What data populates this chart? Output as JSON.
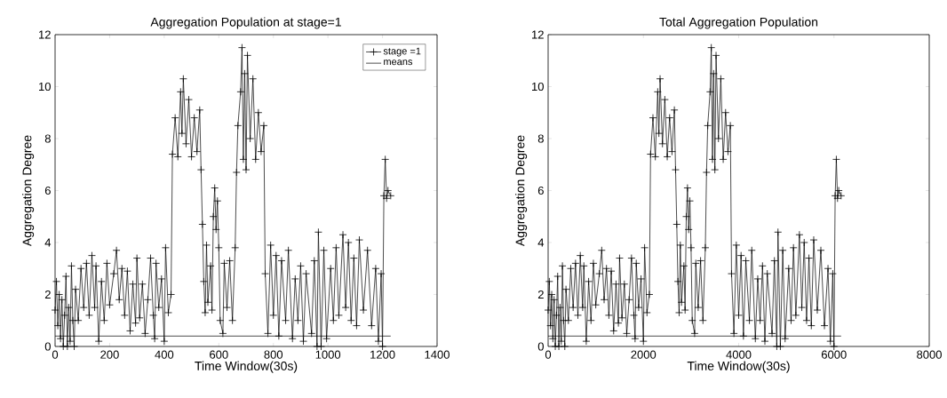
{
  "chart_data": [
    {
      "type": "line",
      "title": "Aggregation Population at stage=1",
      "xlabel": "Time Window(30s)",
      "ylabel": "Aggregation Degree",
      "xlim": [
        0,
        1400
      ],
      "xticks": [
        0,
        200,
        400,
        600,
        800,
        1000,
        1200,
        1400
      ],
      "ylim": [
        0,
        12
      ],
      "yticks": [
        0,
        2,
        4,
        6,
        8,
        10,
        12
      ],
      "legend": "top right",
      "series": [
        {
          "name": "stage =1",
          "color": "#000000",
          "marker": "cross",
          "x": [
            0,
            5,
            10,
            15,
            20,
            25,
            30,
            35,
            40,
            45,
            50,
            55,
            60,
            65,
            70,
            75,
            85,
            95,
            105,
            115,
            125,
            135,
            145,
            150,
            160,
            170,
            180,
            190,
            200,
            215,
            225,
            235,
            245,
            255,
            265,
            275,
            285,
            295,
            300,
            310,
            320,
            330,
            340,
            350,
            360,
            365,
            370,
            380,
            390,
            400,
            405,
            415,
            425,
            430,
            440,
            450,
            460,
            465,
            470,
            480,
            490,
            500,
            510,
            520,
            530,
            535,
            540,
            545,
            550,
            555,
            560,
            570,
            575,
            580,
            585,
            590,
            595,
            600,
            605,
            615,
            620,
            630,
            640,
            650,
            660,
            665,
            670,
            680,
            685,
            690,
            695,
            700,
            705,
            715,
            725,
            735,
            745,
            755,
            765,
            770,
            780,
            790,
            800,
            810,
            820,
            830,
            845,
            855,
            870,
            880,
            890,
            900,
            910,
            920,
            940,
            950,
            960,
            965,
            975,
            985,
            995,
            1010,
            1020,
            1030,
            1040,
            1055,
            1065,
            1075,
            1085,
            1095,
            1105,
            1115,
            1130,
            1145,
            1160,
            1175,
            1185,
            1195,
            1200,
            1205,
            1210,
            1215,
            1220,
            1230
          ],
          "values": [
            1.4,
            2.5,
            0.8,
            2.0,
            0.3,
            1.8,
            0,
            1.2,
            2.7,
            0,
            1.5,
            0.2,
            3.1,
            1.0,
            0,
            2.2,
            1.0,
            3.0,
            1.5,
            3.2,
            1.2,
            3.5,
            1.5,
            3.1,
            0.2,
            2.5,
            1.0,
            3.2,
            1.6,
            2.8,
            3.7,
            1.8,
            3.0,
            1.2,
            2.9,
            0.6,
            2.4,
            0.9,
            3.4,
            1.1,
            2.4,
            0.5,
            1.8,
            3.4,
            1.2,
            0.3,
            3.2,
            1.5,
            2.6,
            0.2,
            3.8,
            1.3,
            2.0,
            7.4,
            8.8,
            7.3,
            9.8,
            8.2,
            10.3,
            7.8,
            9.5,
            7.3,
            8.8,
            7.5,
            9.1,
            6.8,
            4.7,
            2.5,
            1.3,
            3.9,
            1.7,
            3.1,
            1.4,
            5.0,
            6.1,
            4.5,
            5.6,
            3.8,
            1.0,
            0.5,
            3.2,
            1.5,
            3.3,
            1.0,
            3.8,
            6.7,
            8.5,
            9.8,
            11.5,
            7.2,
            10.5,
            6.8,
            11.2,
            8.0,
            10.3,
            7.2,
            9.0,
            7.5,
            8.5,
            2.8,
            0.5,
            3.9,
            1.2,
            3.5,
            0.4,
            3.3,
            1.0,
            3.7,
            0.3,
            2.6,
            1.0,
            3.1,
            0.2,
            2.8,
            0.5,
            3.3,
            0,
            4.4,
            0,
            3.7,
            0.3,
            3.0,
            1.0,
            3.8,
            1.2,
            4.3,
            1.5,
            4.0,
            1.0,
            3.4,
            0.8,
            4.1,
            1.4,
            3.7,
            0.8,
            3.0,
            0.2,
            2.8,
            0,
            5.8,
            7.2,
            5.7,
            6.0,
            5.8
          ]
        },
        {
          "name": "means",
          "color": "#000000",
          "marker": "none",
          "x": [
            0,
            1230
          ],
          "values": [
            0.4,
            0.4
          ]
        }
      ]
    },
    {
      "type": "line",
      "title": "Total Aggregation Population",
      "xlabel": "Time Window(30s)",
      "ylabel": "Aggregation Degree",
      "xlim": [
        0,
        8000
      ],
      "xticks": [
        0,
        2000,
        4000,
        6000,
        8000
      ],
      "ylim": [
        0,
        12
      ],
      "yticks": [
        0,
        2,
        4,
        6,
        8,
        10,
        12
      ],
      "series": [
        {
          "color": "#000000",
          "marker": "cross",
          "x": [
            0,
            25,
            50,
            75,
            100,
            125,
            150,
            175,
            200,
            225,
            250,
            275,
            300,
            325,
            350,
            375,
            425,
            475,
            525,
            575,
            625,
            675,
            725,
            750,
            800,
            850,
            900,
            950,
            1000,
            1075,
            1125,
            1175,
            1225,
            1275,
            1325,
            1375,
            1425,
            1475,
            1500,
            1550,
            1600,
            1650,
            1700,
            1750,
            1800,
            1825,
            1850,
            1900,
            1950,
            2000,
            2025,
            2075,
            2125,
            2150,
            2200,
            2250,
            2300,
            2325,
            2350,
            2400,
            2450,
            2500,
            2550,
            2600,
            2650,
            2675,
            2700,
            2725,
            2750,
            2775,
            2800,
            2850,
            2875,
            2900,
            2925,
            2950,
            2975,
            3000,
            3025,
            3075,
            3100,
            3150,
            3200,
            3250,
            3300,
            3325,
            3350,
            3400,
            3425,
            3450,
            3475,
            3500,
            3525,
            3575,
            3625,
            3675,
            3725,
            3775,
            3825,
            3850,
            3900,
            3950,
            4000,
            4050,
            4100,
            4150,
            4225,
            4275,
            4350,
            4400,
            4450,
            4500,
            4550,
            4600,
            4700,
            4750,
            4800,
            4825,
            4875,
            4925,
            4975,
            5050,
            5100,
            5150,
            5200,
            5275,
            5325,
            5375,
            5425,
            5475,
            5525,
            5575,
            5650,
            5725,
            5800,
            5875,
            5925,
            5975,
            6000,
            6025,
            6050,
            6075,
            6100,
            6150
          ],
          "values": [
            1.4,
            2.5,
            0.8,
            2.0,
            0.3,
            1.8,
            0,
            1.2,
            2.7,
            0,
            1.5,
            0.2,
            3.1,
            1.0,
            0,
            2.2,
            1.0,
            3.0,
            1.5,
            3.2,
            1.2,
            3.5,
            1.5,
            3.1,
            0.2,
            2.5,
            1.0,
            3.2,
            1.6,
            2.8,
            3.7,
            1.8,
            3.0,
            1.2,
            2.9,
            0.6,
            2.4,
            0.9,
            3.4,
            1.1,
            2.4,
            0.5,
            1.8,
            3.4,
            1.2,
            0.3,
            3.2,
            1.5,
            2.6,
            0.2,
            3.8,
            1.3,
            2.0,
            7.4,
            8.8,
            7.3,
            9.8,
            8.2,
            10.3,
            7.8,
            9.5,
            7.3,
            8.8,
            7.5,
            9.1,
            6.8,
            4.7,
            2.5,
            1.3,
            3.9,
            1.7,
            3.1,
            1.4,
            5.0,
            6.1,
            4.5,
            5.6,
            3.8,
            1.0,
            0.5,
            3.2,
            1.5,
            3.3,
            1.0,
            3.8,
            6.7,
            8.5,
            9.8,
            11.5,
            7.2,
            10.5,
            6.8,
            11.2,
            8.0,
            10.3,
            7.2,
            9.0,
            7.5,
            8.5,
            2.8,
            0.5,
            3.9,
            1.2,
            3.5,
            0.4,
            3.3,
            1.0,
            3.7,
            0.3,
            2.6,
            1.0,
            3.1,
            0.2,
            2.8,
            0.5,
            3.3,
            0,
            4.4,
            0,
            3.7,
            0.3,
            3.0,
            1.0,
            3.8,
            1.2,
            4.3,
            1.5,
            4.0,
            1.0,
            3.4,
            0.8,
            4.1,
            1.4,
            3.7,
            0.8,
            3.0,
            0.2,
            2.8,
            0,
            5.8,
            7.2,
            5.7,
            6.0,
            5.8
          ]
        },
        {
          "color": "#000000",
          "marker": "none",
          "x": [
            0,
            6150
          ],
          "values": [
            0.4,
            0.4
          ]
        }
      ]
    }
  ]
}
